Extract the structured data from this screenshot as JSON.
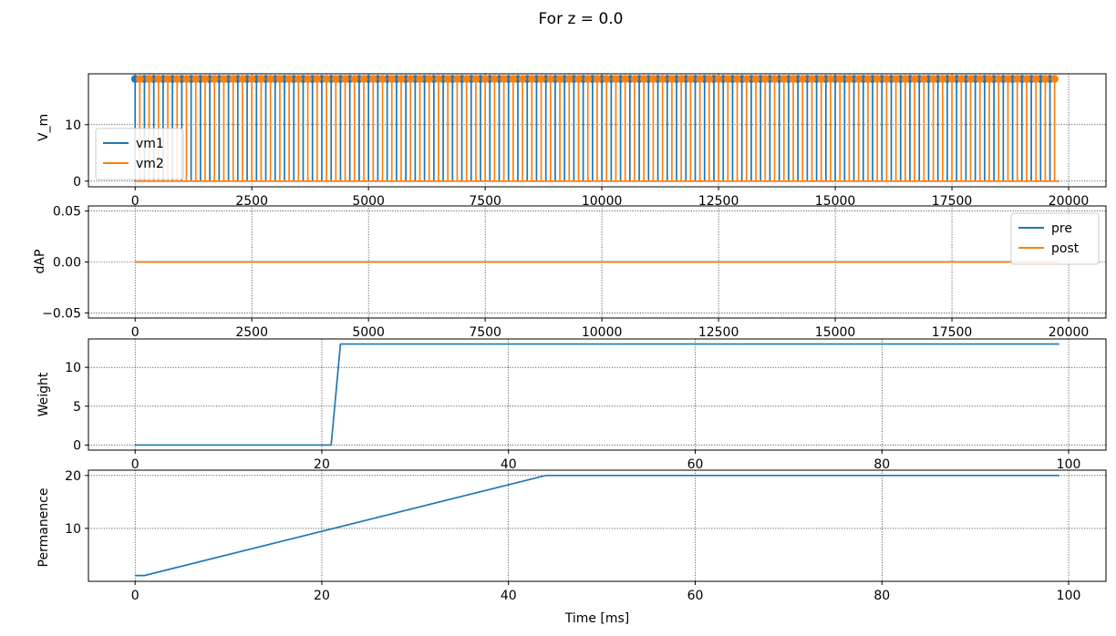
{
  "figure": {
    "suptitle": "For z = 0.0"
  },
  "colors": {
    "blue": "#1f77b4",
    "orange": "#ff7f0e",
    "grid": "#000000",
    "legend_border": "#cccccc"
  },
  "chart_data": [
    {
      "type": "line",
      "ylabel": "V_m",
      "xlim": [
        -1000,
        20800
      ],
      "ylim": [
        -1,
        19
      ],
      "xticks": [
        0,
        2500,
        5000,
        7500,
        10000,
        12500,
        15000,
        17500,
        20000
      ],
      "yticks": [
        0,
        10
      ],
      "grid": true,
      "legend_placement": "lower-left",
      "series": [
        {
          "name": "vm1",
          "color": "#1f77b4",
          "pattern": "spike-train",
          "baseline": 0,
          "peak": 18.1,
          "first_spike": 0,
          "period": 200,
          "last_spike": 19600,
          "end": 19800,
          "markers": "o"
        },
        {
          "name": "vm2",
          "color": "#ff7f0e",
          "pattern": "spike-train",
          "baseline": 0,
          "peak": 18.1,
          "first_spike": 100,
          "period": 200,
          "last_spike": 19700,
          "end": 19800,
          "markers": "o"
        }
      ]
    },
    {
      "type": "line",
      "ylabel": "dAP",
      "xlim": [
        -1000,
        20800
      ],
      "ylim": [
        -0.055,
        0.055
      ],
      "xticks": [
        0,
        2500,
        5000,
        7500,
        10000,
        12500,
        15000,
        17500,
        20000
      ],
      "yticks": [
        -0.05,
        0.0,
        0.05
      ],
      "ytick_labels": [
        "−0.05",
        "0.00",
        "0.05"
      ],
      "grid": true,
      "legend_placement": "upper-right",
      "series": [
        {
          "name": "pre",
          "color": "#1f77b4",
          "x": [
            0,
            19800
          ],
          "y": [
            0,
            0
          ]
        },
        {
          "name": "post",
          "color": "#ff7f0e",
          "x": [
            0,
            19800
          ],
          "y": [
            0,
            0
          ]
        }
      ]
    },
    {
      "type": "line",
      "ylabel": "Weight",
      "xlim": [
        -5,
        104
      ],
      "ylim": [
        -0.65,
        13.65
      ],
      "xticks": [
        0,
        20,
        40,
        60,
        80,
        100
      ],
      "yticks": [
        0,
        5,
        10
      ],
      "grid": true,
      "series": [
        {
          "color": "#1f77b4",
          "x": [
            0,
            21,
            22,
            99
          ],
          "y": [
            0,
            0,
            13,
            13
          ]
        }
      ]
    },
    {
      "type": "line",
      "ylabel": "Permanence",
      "xlabel": "Time [ms]",
      "xlim": [
        -5,
        104
      ],
      "ylim": [
        0,
        21
      ],
      "xticks": [
        0,
        20,
        40,
        60,
        80,
        100
      ],
      "yticks": [
        10,
        20
      ],
      "grid": true,
      "series": [
        {
          "color": "#1f77b4",
          "x": [
            0,
            1,
            44,
            99
          ],
          "y": [
            1.1,
            1.1,
            20,
            20
          ]
        }
      ]
    }
  ]
}
